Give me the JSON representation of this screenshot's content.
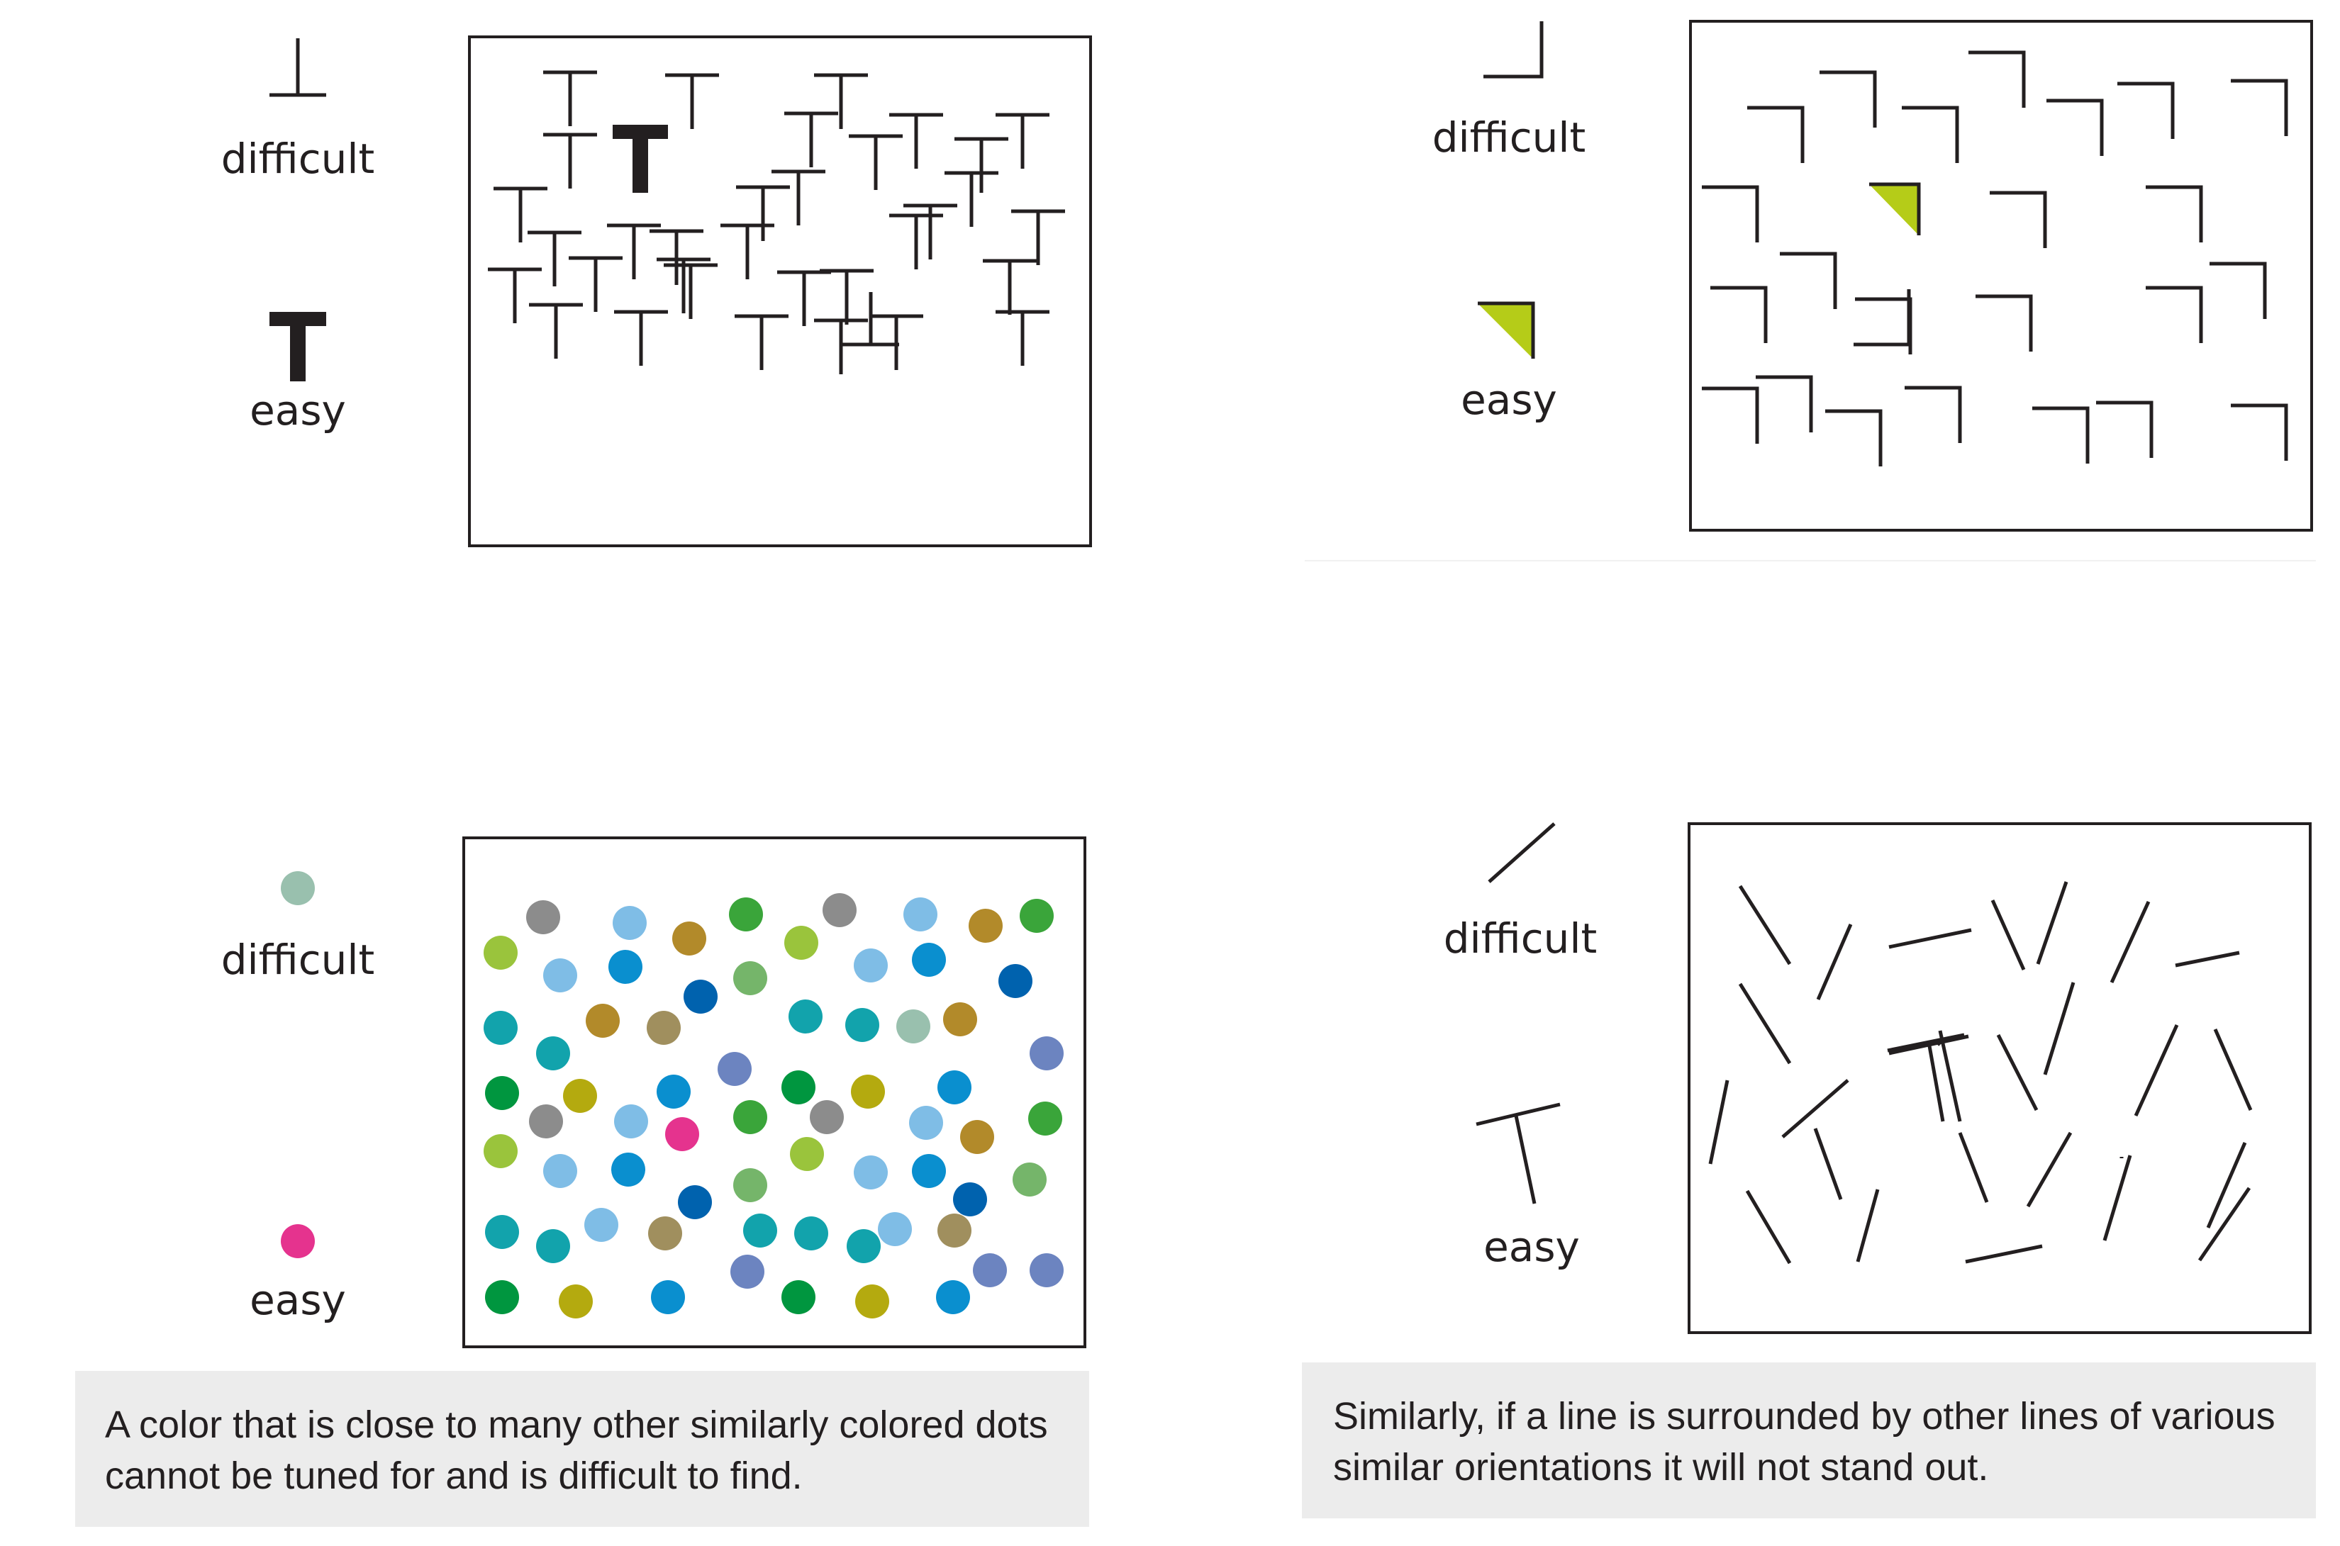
{
  "colors": {
    "ink": "#231f20",
    "caption_bg": "#ececec",
    "triangle_fill": "#b5cc18",
    "target_dot_easy": "#e5338e",
    "target_dot_difficult": "#99c0ae"
  },
  "panels": {
    "t_shapes": {
      "difficult_label": "difficult",
      "easy_label": "easy"
    },
    "corners": {
      "difficult_label": "difficult",
      "easy_label": "easy"
    },
    "dots": {
      "difficult_label": "difficult",
      "easy_label": "easy"
    },
    "lines": {
      "difficult_label": "difficult",
      "easy_label": "easy"
    }
  },
  "captions": {
    "dots": {
      "line1": "A color that is close to many other similarly colored dots",
      "line2": "cannot be tuned for and is difficult to find."
    },
    "lines": {
      "line1": "Similarly, if a line is surrounded by other lines of various",
      "line2": "similar orientations it will not stand out."
    }
  },
  "dot_palette": [
    "#8c8c8c",
    "#9ac43c",
    "#7fbde6",
    "#0a8fcf",
    "#b28a2a",
    "#3aa53a",
    "#0062ae",
    "#75b56a",
    "#12a3ac",
    "#a08f5e",
    "#99c0ae",
    "#6c84c0",
    "#00963f",
    "#b4aa0f",
    "#e5338e"
  ]
}
